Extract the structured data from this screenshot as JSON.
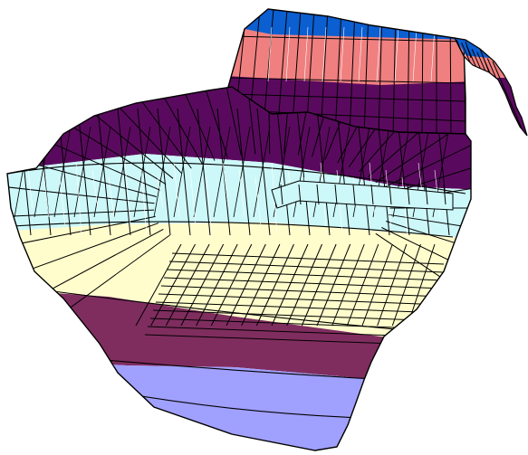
{
  "figure": {
    "type": "3d-mesh-surface",
    "background": "#ffffff",
    "mesh_line_color": "#000000",
    "highlight_line_color": "#ffffff",
    "bands": [
      {
        "name": "blue",
        "color": "#0b5fd1"
      },
      {
        "name": "salmon",
        "color": "#f08080"
      },
      {
        "name": "dark-purple",
        "color": "#5a0a5e"
      },
      {
        "name": "light-cyan",
        "color": "#cdf8f9"
      },
      {
        "name": "light-yellow",
        "color": "#fffdcc"
      },
      {
        "name": "plum",
        "color": "#7f2d5f"
      },
      {
        "name": "periwinkle",
        "color": "#a0a0ff"
      }
    ]
  }
}
